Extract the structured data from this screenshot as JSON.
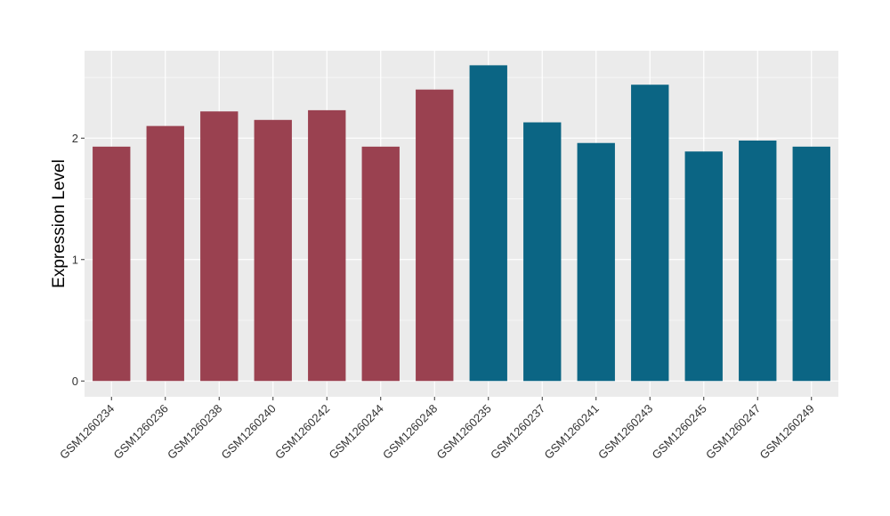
{
  "chart_data": {
    "type": "bar",
    "title": "",
    "xlabel": "",
    "ylabel": "Expression Level",
    "ylim": [
      -0.13,
      2.72
    ],
    "yticks": [
      0,
      1,
      2
    ],
    "grid": true,
    "categories": [
      "GSM1260234",
      "GSM1260236",
      "GSM1260238",
      "GSM1260240",
      "GSM1260242",
      "GSM1260244",
      "GSM1260248",
      "GSM1260235",
      "GSM1260237",
      "GSM1260241",
      "GSM1260243",
      "GSM1260245",
      "GSM1260247",
      "GSM1260249"
    ],
    "values": [
      1.93,
      2.1,
      2.22,
      2.15,
      2.23,
      1.93,
      2.4,
      2.6,
      2.13,
      1.96,
      2.44,
      1.89,
      1.98,
      1.93
    ],
    "bar_colors": [
      "#9a4150",
      "#9a4150",
      "#9a4150",
      "#9a4150",
      "#9a4150",
      "#9a4150",
      "#9a4150",
      "#0b6584",
      "#0b6584",
      "#0b6584",
      "#0b6584",
      "#0b6584",
      "#0b6584",
      "#0b6584"
    ],
    "colors": {
      "panel": "#ebebeb",
      "grid": "#ffffff",
      "axis_text": "#333333"
    }
  }
}
